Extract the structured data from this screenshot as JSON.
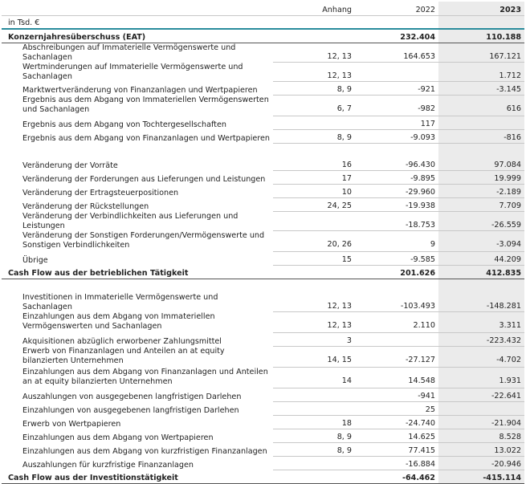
{
  "table": {
    "header": {
      "note": "Anhang",
      "y2022": "2022",
      "y2023": "2023"
    },
    "unit": "in Tsd. €",
    "sections": [
      {
        "rows": [
          {
            "label": "Konzernjahresüberschuss (EAT)",
            "y2022": "232.404",
            "y2023": "110.188",
            "total": true
          },
          {
            "label": "Abschreibungen auf Immaterielle Vermögenswerte und Sachanlagen",
            "note": "12, 13",
            "y2022": "164.653",
            "y2023": "167.121"
          },
          {
            "label": "Wertminderungen auf Immaterielle Vermögenswerte und Sachanlagen",
            "note": "12, 13",
            "y2023": "1.712"
          },
          {
            "label": "Marktwertveränderung von Finanzanlagen und Wertpapieren",
            "note": "8, 9",
            "y2022": "-921",
            "y2023": "-3.145"
          },
          {
            "label": "Ergebnis aus dem Abgang von Immateriellen Vermögenswerten und Sachanlagen",
            "note": "6, 7",
            "y2022": "-982",
            "y2023": "616"
          },
          {
            "label": "Ergebnis aus dem Abgang von Tochtergesellschaften",
            "y2022": "117"
          },
          {
            "label": "Ergebnis aus dem Abgang von Finanzanlagen und Wertpapieren",
            "note": "8, 9",
            "y2022": "-9.093",
            "y2023": "-816"
          }
        ]
      },
      {
        "rows": [
          {
            "label": "Veränderung der Vorräte",
            "note": "16",
            "y2022": "-96.430",
            "y2023": "97.084"
          },
          {
            "label": "Veränderung der Forderungen aus Lieferungen und Leistungen",
            "note": "17",
            "y2022": "-9.895",
            "y2023": "19.999"
          },
          {
            "label": "Veränderung der Ertragsteuerpositionen",
            "note": "10",
            "y2022": "-29.960",
            "y2023": "-2.189"
          },
          {
            "label": "Veränderung der Rückstellungen",
            "note": "24, 25",
            "y2022": "-19.938",
            "y2023": "7.709"
          },
          {
            "label": "Veränderung der Verbindlichkeiten aus Lieferungen und Leistungen",
            "y2022": "-18.753",
            "y2023": "-26.559"
          },
          {
            "label": "Veränderung der Sonstigen Forderungen/Vermögenswerte und Sonstigen Verbindlichkeiten",
            "note": "20, 26",
            "y2022": "9",
            "y2023": "-3.094"
          },
          {
            "label": "Übrige",
            "note": "15",
            "y2022": "-9.585",
            "y2023": "44.209"
          },
          {
            "label": "Cash Flow aus der betrieblichen Tätigkeit",
            "y2022": "201.626",
            "y2023": "412.835",
            "total": true
          }
        ]
      },
      {
        "rows": [
          {
            "label": "Investitionen in Immaterielle Vermögenswerte und Sachanlagen",
            "note": "12, 13",
            "y2022": "-103.493",
            "y2023": "-148.281"
          },
          {
            "label": "Einzahlungen aus dem Abgang von Immateriellen Vermögenswerten und Sachanlagen",
            "note": "12, 13",
            "y2022": "2.110",
            "y2023": "3.311"
          },
          {
            "label": "Akquisitionen abzüglich erworbener Zahlungsmittel",
            "note": "3",
            "y2023": "-223.432"
          },
          {
            "label": "Erwerb von Finanzanlagen und Anteilen an at equity bilanzierten Unternehmen",
            "note": "14, 15",
            "y2022": "-27.127",
            "y2023": "-4.702"
          },
          {
            "label": "Einzahlungen aus dem Abgang von Finanzanlagen und Anteilen an at equity bilanzierten Unternehmen",
            "note": "14",
            "y2022": "14.548",
            "y2023": "1.931"
          },
          {
            "label": "Auszahlungen von ausgegebenen langfristigen Darlehen",
            "y2022": "-941",
            "y2023": "-22.641"
          },
          {
            "label": "Einzahlungen von ausgegebenen langfristigen Darlehen",
            "y2022": "25"
          },
          {
            "label": "Erwerb von Wertpapieren",
            "note": "18",
            "y2022": "-24.740",
            "y2023": "-21.904"
          },
          {
            "label": "Einzahlungen aus dem Abgang von Wertpapieren",
            "note": "8, 9",
            "y2022": "14.625",
            "y2023": "8.528"
          },
          {
            "label": "Einzahlungen aus dem Abgang von kurzfristigen Finanzanlagen",
            "note": "8, 9",
            "y2022": "77.415",
            "y2023": "13.022"
          },
          {
            "label": "Auszahlungen für kurzfristige Finanzanlagen",
            "y2022": "-16.884",
            "y2023": "-20.946"
          },
          {
            "label": "Cash Flow aus der Investitionstätigkeit",
            "y2022": "-64.462",
            "y2023": "-415.114",
            "total": true
          }
        ]
      }
    ]
  }
}
